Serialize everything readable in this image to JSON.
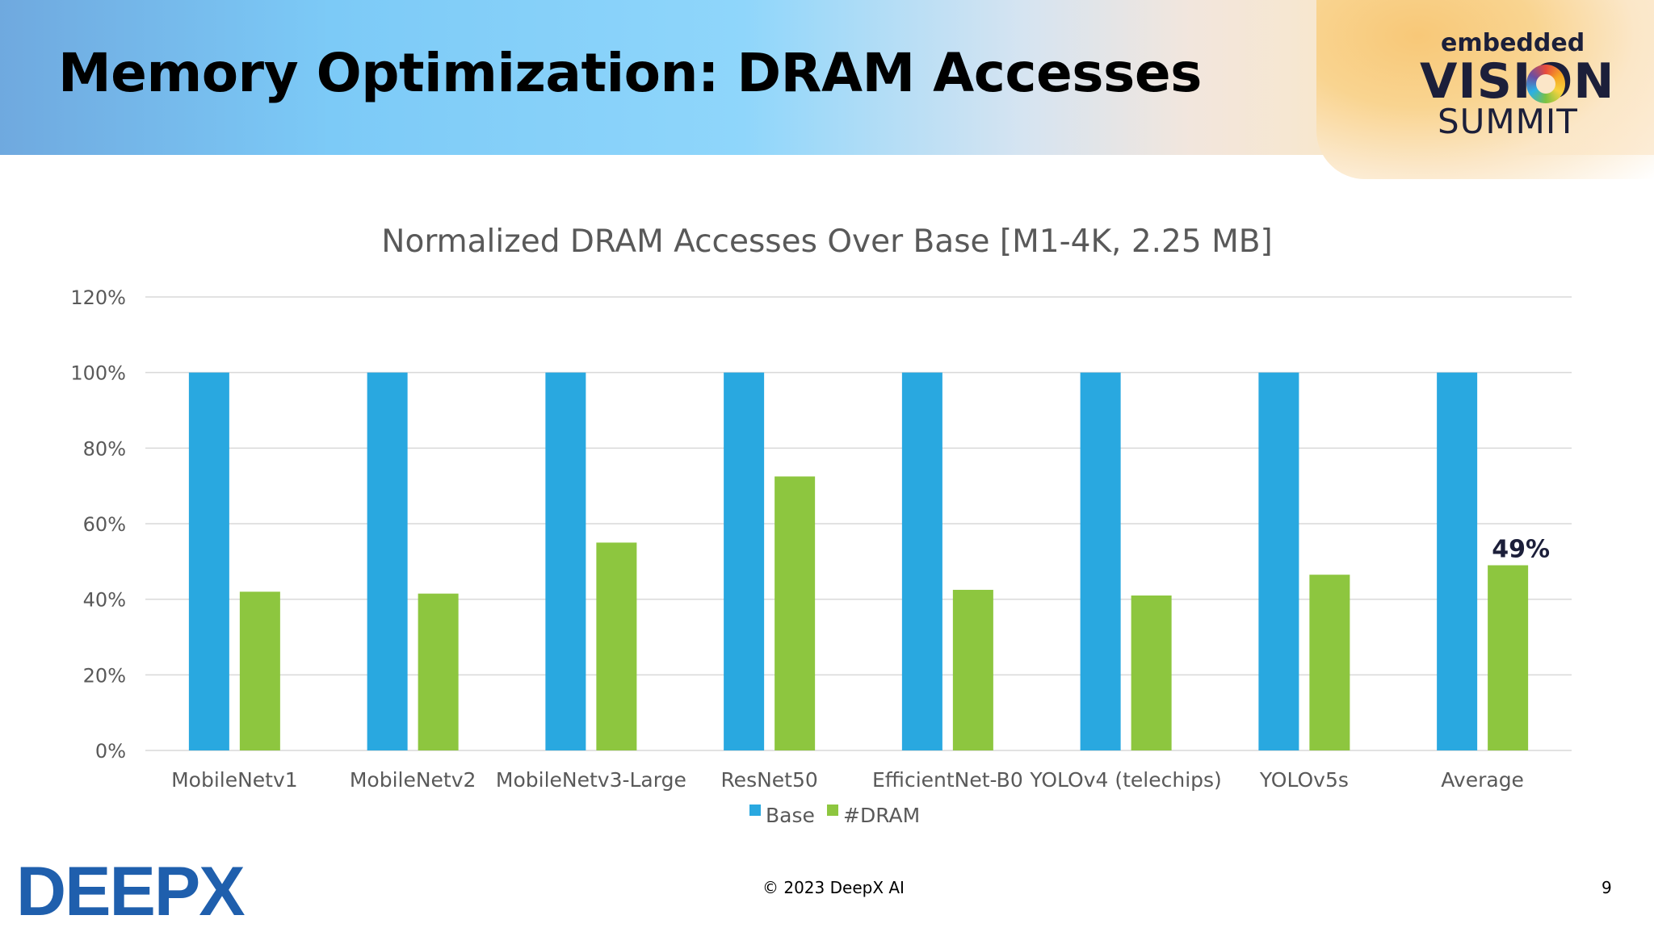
{
  "slide": {
    "title": "Memory Optimization: DRAM Accesses",
    "logo": {
      "line1": "embedded",
      "line2": "VISION",
      "line3": "SUMMIT"
    },
    "company_logo": "DEEPX",
    "footer": "© 2023 DeepX AI",
    "page_number": "9"
  },
  "colors": {
    "base": "#29a8e0",
    "dram": "#8dc63f",
    "grid": "#d9d9d9"
  },
  "chart_data": {
    "type": "bar",
    "title": "Normalized DRAM Accesses Over Base [M1-4K, 2.25 MB]",
    "categories": [
      "MobileNetv1",
      "MobileNetv2",
      "MobileNetv3-Large",
      "ResNet50",
      "EfficientNet-B0",
      "YOLOv4 (telechips)",
      "YOLOv5s",
      "Average"
    ],
    "series": [
      {
        "name": "Base",
        "values": [
          100,
          100,
          100,
          100,
          100,
          100,
          100,
          100
        ]
      },
      {
        "name": "#DRAM",
        "values": [
          42,
          41.5,
          55,
          72.5,
          42.5,
          41,
          46.5,
          49
        ]
      }
    ],
    "ylim": [
      0,
      120
    ],
    "yticks": [
      "0%",
      "20%",
      "40%",
      "60%",
      "80%",
      "100%",
      "120%"
    ],
    "data_label": "49%",
    "legend_position": "bottom",
    "grid": true
  }
}
